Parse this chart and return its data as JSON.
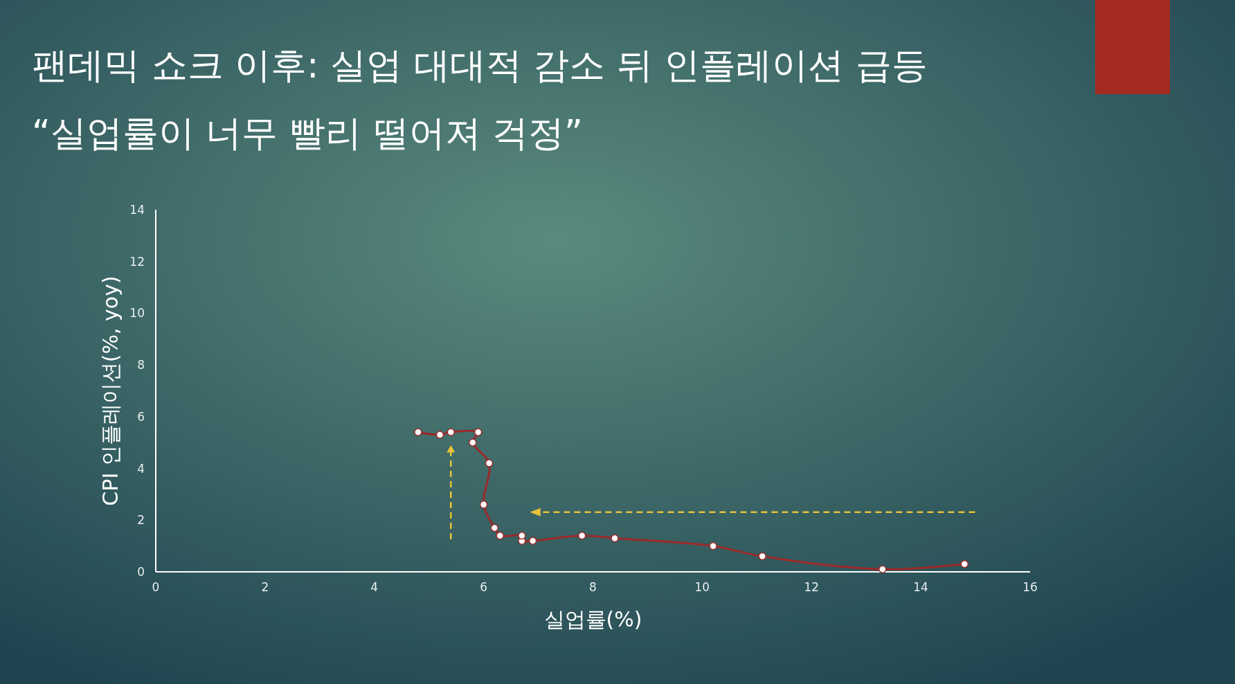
{
  "chart_data": {
    "type": "line",
    "title": "팬데믹 쇼크 이후: 실업 대대적 감소 뒤 인플레이션 급등",
    "subtitle": "“실업률이 너무 빨리 떨어져 걱정”",
    "xlabel": "실업률(%)",
    "ylabel": "CPI 인플레이션(%, yoy)",
    "series": [
      {
        "color": "#9b2a2a",
        "x": [
          14.8,
          13.3,
          11.1,
          10.2,
          8.4,
          7.8,
          6.9,
          6.7,
          6.7,
          6.3,
          6.2,
          6.0,
          6.1,
          5.8,
          5.9,
          5.4,
          5.2,
          4.8
        ],
        "values": [
          0.3,
          0.1,
          0.6,
          1.0,
          1.3,
          1.4,
          1.2,
          1.2,
          1.4,
          1.4,
          1.7,
          2.6,
          4.2,
          5.0,
          5.4,
          5.4,
          5.3,
          5.4
        ]
      }
    ],
    "marker": "circle",
    "xlim": [
      0,
      16
    ],
    "xticks": [
      0,
      2,
      4,
      6,
      8,
      10,
      12,
      14,
      16
    ],
    "ylim": [
      0,
      14
    ],
    "yticks": [
      0,
      2,
      4,
      6,
      8,
      10,
      12,
      14
    ],
    "grid": false
  }
}
